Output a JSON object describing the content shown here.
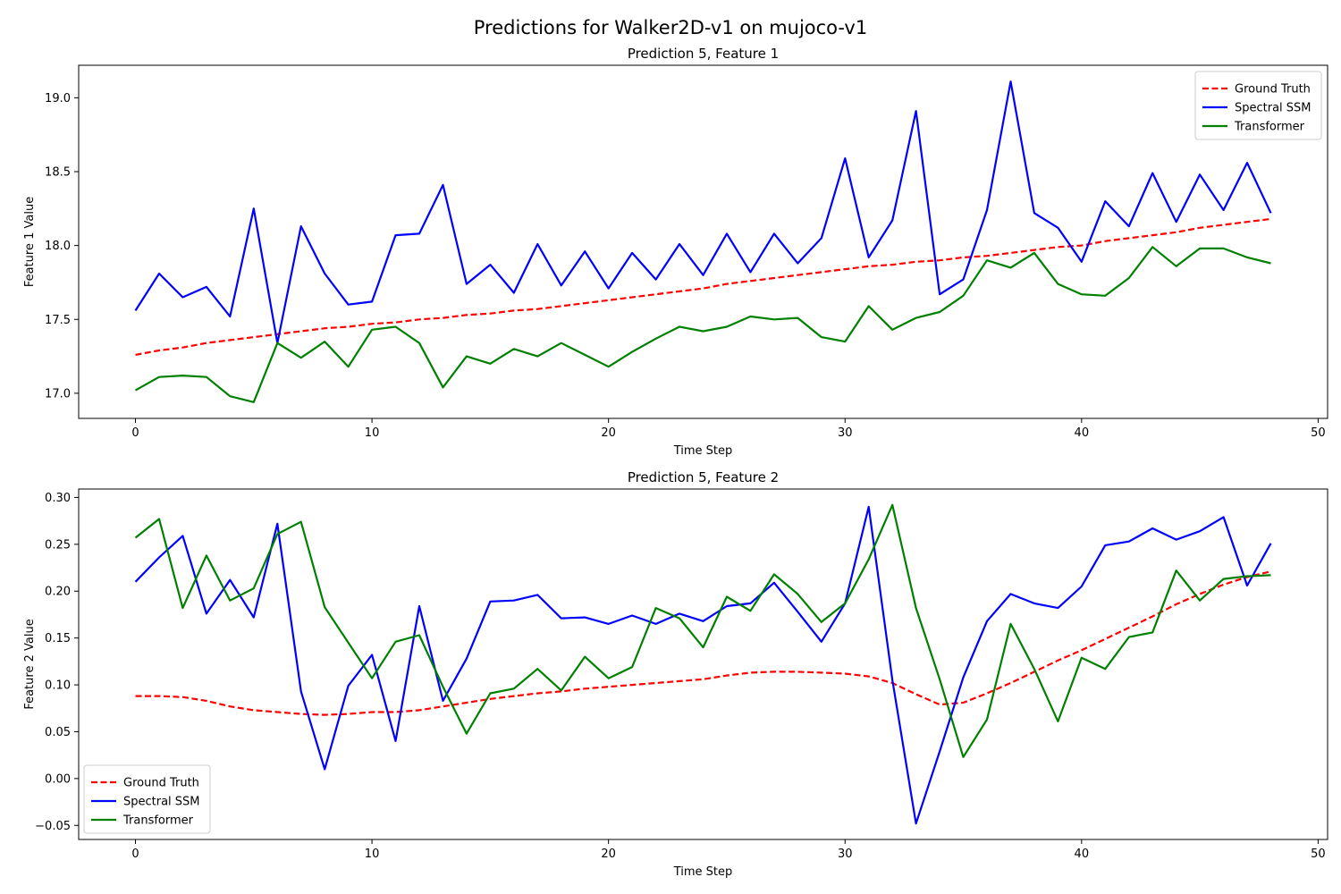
{
  "figure": {
    "title": "Predictions for Walker2D-v1 on mujoco-v1"
  },
  "chart_data": [
    {
      "type": "line",
      "title": "Prediction 5, Feature 1",
      "xlabel": "Time Step",
      "ylabel": "Feature 1 Value",
      "xlim": [
        -2.4,
        50.4
      ],
      "ylim": [
        16.83,
        19.22
      ],
      "xticks": [
        0,
        10,
        20,
        30,
        40,
        50
      ],
      "yticks": [
        17.0,
        17.5,
        18.0,
        18.5,
        19.0
      ],
      "ytick_labels": [
        "17.0",
        "17.5",
        "18.0",
        "18.5",
        "19.0"
      ],
      "legend_position": "top-right",
      "grid": false,
      "x": [
        0,
        1,
        2,
        3,
        4,
        5,
        6,
        7,
        8,
        9,
        10,
        11,
        12,
        13,
        14,
        15,
        16,
        17,
        18,
        19,
        20,
        21,
        22,
        23,
        24,
        25,
        26,
        27,
        28,
        29,
        30,
        31,
        32,
        33,
        34,
        35,
        36,
        37,
        38,
        39,
        40,
        41,
        42,
        43,
        44,
        45,
        46,
        47,
        48
      ],
      "series": [
        {
          "name": "Ground Truth",
          "color": "#ff0000",
          "style": "dashed",
          "values": [
            17.26,
            17.29,
            17.31,
            17.34,
            17.36,
            17.38,
            17.4,
            17.42,
            17.44,
            17.45,
            17.47,
            17.48,
            17.5,
            17.51,
            17.53,
            17.54,
            17.56,
            17.57,
            17.59,
            17.61,
            17.63,
            17.65,
            17.67,
            17.69,
            17.71,
            17.74,
            17.76,
            17.78,
            17.8,
            17.82,
            17.84,
            17.86,
            17.87,
            17.89,
            17.9,
            17.92,
            17.93,
            17.95,
            17.97,
            17.99,
            18.0,
            18.03,
            18.05,
            18.07,
            18.09,
            18.12,
            18.14,
            18.16,
            18.18
          ]
        },
        {
          "name": "Spectral SSM",
          "color": "#0000ff",
          "style": "solid",
          "values": [
            17.56,
            17.81,
            17.65,
            17.72,
            17.52,
            18.25,
            17.34,
            18.13,
            17.81,
            17.6,
            17.62,
            18.07,
            18.08,
            18.41,
            17.74,
            17.87,
            17.68,
            18.01,
            17.73,
            17.96,
            17.71,
            17.95,
            17.77,
            18.01,
            17.8,
            18.08,
            17.82,
            18.08,
            17.88,
            18.05,
            18.59,
            17.92,
            18.17,
            18.91,
            17.67,
            17.77,
            18.24,
            19.11,
            18.22,
            18.12,
            17.89,
            18.3,
            18.13,
            18.49,
            18.16,
            18.48,
            18.24,
            18.56,
            18.22
          ]
        },
        {
          "name": "Transformer",
          "color": "#008000",
          "style": "solid",
          "values": [
            17.02,
            17.11,
            17.12,
            17.11,
            16.98,
            16.94,
            17.34,
            17.24,
            17.35,
            17.18,
            17.43,
            17.45,
            17.34,
            17.04,
            17.25,
            17.2,
            17.3,
            17.25,
            17.34,
            17.26,
            17.18,
            17.28,
            17.37,
            17.45,
            17.42,
            17.45,
            17.52,
            17.5,
            17.51,
            17.38,
            17.35,
            17.59,
            17.43,
            17.51,
            17.55,
            17.66,
            17.9,
            17.85,
            17.95,
            17.74,
            17.67,
            17.66,
            17.78,
            17.99,
            17.86,
            17.98,
            17.98,
            17.92,
            17.88
          ]
        }
      ]
    },
    {
      "type": "line",
      "title": "Prediction 5, Feature 2",
      "xlabel": "Time Step",
      "ylabel": "Feature 2 Value",
      "xlim": [
        -2.4,
        50.4
      ],
      "ylim": [
        -0.065,
        0.309
      ],
      "xticks": [
        0,
        10,
        20,
        30,
        40,
        50
      ],
      "yticks": [
        -0.05,
        0.0,
        0.05,
        0.1,
        0.15,
        0.2,
        0.25,
        0.3
      ],
      "ytick_labels": [
        "−0.05",
        "0.00",
        "0.05",
        "0.10",
        "0.15",
        "0.20",
        "0.25",
        "0.30"
      ],
      "legend_position": "bottom-left",
      "grid": false,
      "x": [
        0,
        1,
        2,
        3,
        4,
        5,
        6,
        7,
        8,
        9,
        10,
        11,
        12,
        13,
        14,
        15,
        16,
        17,
        18,
        19,
        20,
        21,
        22,
        23,
        24,
        25,
        26,
        27,
        28,
        29,
        30,
        31,
        32,
        33,
        34,
        35,
        36,
        37,
        38,
        39,
        40,
        41,
        42,
        43,
        44,
        45,
        46,
        47,
        48
      ],
      "series": [
        {
          "name": "Ground Truth",
          "color": "#ff0000",
          "style": "dashed",
          "values": [
            0.088,
            0.088,
            0.087,
            0.083,
            0.077,
            0.073,
            0.071,
            0.069,
            0.068,
            0.069,
            0.071,
            0.071,
            0.073,
            0.077,
            0.081,
            0.085,
            0.088,
            0.091,
            0.093,
            0.096,
            0.098,
            0.1,
            0.102,
            0.104,
            0.106,
            0.11,
            0.113,
            0.114,
            0.114,
            0.113,
            0.112,
            0.109,
            0.102,
            0.09,
            0.079,
            0.081,
            0.091,
            0.102,
            0.114,
            0.126,
            0.137,
            0.149,
            0.161,
            0.173,
            0.186,
            0.197,
            0.207,
            0.215,
            0.221
          ]
        },
        {
          "name": "Spectral SSM",
          "color": "#0000ff",
          "style": "solid",
          "values": [
            0.21,
            0.236,
            0.259,
            0.176,
            0.212,
            0.172,
            0.272,
            0.093,
            0.01,
            0.099,
            0.132,
            0.04,
            0.184,
            0.083,
            0.128,
            0.189,
            0.19,
            0.196,
            0.171,
            0.172,
            0.165,
            0.174,
            0.165,
            0.176,
            0.168,
            0.184,
            0.187,
            0.209,
            0.178,
            0.146,
            0.187,
            0.29,
            0.105,
            -0.048,
            0.029,
            0.108,
            0.168,
            0.197,
            0.187,
            0.182,
            0.205,
            0.249,
            0.253,
            0.267,
            0.255,
            0.264,
            0.279,
            0.206,
            0.251
          ]
        },
        {
          "name": "Transformer",
          "color": "#008000",
          "style": "solid",
          "values": [
            0.257,
            0.277,
            0.182,
            0.238,
            0.19,
            0.203,
            0.261,
            0.274,
            0.183,
            0.145,
            0.107,
            0.146,
            0.153,
            0.098,
            0.048,
            0.091,
            0.096,
            0.117,
            0.094,
            0.13,
            0.107,
            0.119,
            0.182,
            0.171,
            0.14,
            0.194,
            0.179,
            0.218,
            0.197,
            0.167,
            0.187,
            0.234,
            0.292,
            0.182,
            0.106,
            0.023,
            0.063,
            0.165,
            0.117,
            0.061,
            0.129,
            0.117,
            0.151,
            0.156,
            0.222,
            0.19,
            0.213,
            0.216,
            0.217
          ]
        }
      ]
    }
  ]
}
